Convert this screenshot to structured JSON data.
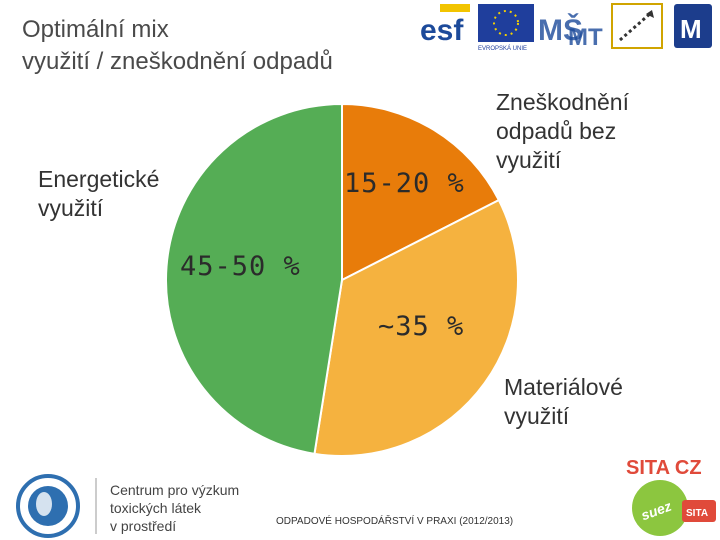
{
  "slide": {
    "title": "Optimální mix\nvyužití / zneškodnění odpadů",
    "footer": "ODPADOVÉ HOSPODÁŘSTVÍ V PRAXI (2012/2013)",
    "centre_name": "Centrum pro výzkum\ntoxických látek\nv prostředí",
    "sita_logo": "SITA CZ",
    "logos": [
      "esf-logo",
      "eu-flag-icon",
      "msmt-logo",
      "op-vk-logo",
      "muni-logo",
      "ccrt-globe-logo",
      "suez-logo"
    ]
  },
  "chart_data": {
    "type": "pie",
    "title": "",
    "start_angle_deg": 0,
    "direction": "clockwise",
    "slices": [
      {
        "label": "Zneškodnění\nodpadů bez\nvyužití",
        "value_label": "15-20 %",
        "value": 17.5,
        "color": "#e87c0a"
      },
      {
        "label": "Materiálové\nvyužití",
        "value_label": "~35 %",
        "value": 35,
        "color": "#f5b23f"
      },
      {
        "label": "Energetické\nvyužití",
        "value_label": "45-50 %",
        "value": 47.5,
        "color": "#55ad55"
      }
    ],
    "legend": "none"
  }
}
